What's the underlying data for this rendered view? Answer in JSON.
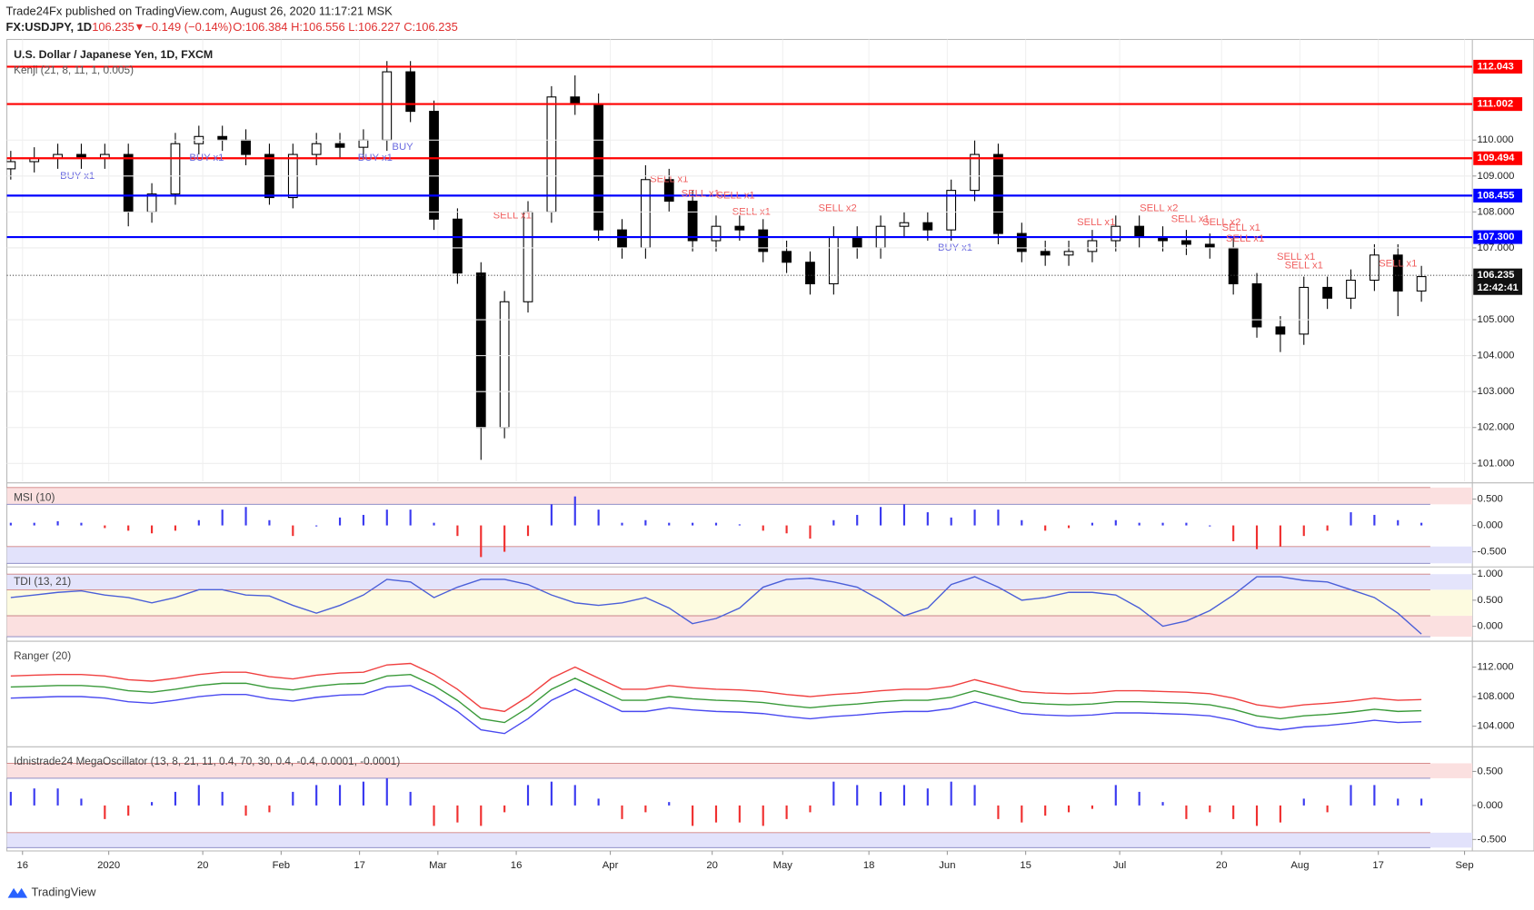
{
  "header": {
    "publisher": "Trade24Fx published on TradingView.com, August 26, 2020 11:17:21 MSK",
    "symbol": "FX:USDJPY, 1D",
    "last": "106.235",
    "arrow": "▼",
    "change": "−0.149 (−0.14%)",
    "ohlc": "O:106.384 H:106.556 L:106.227 C:106.235",
    "footer": "TradingView"
  },
  "chart_data": [
    {
      "type": "candlestick",
      "title": "U.S. Dollar / Japanese Yen, 1D, FXCM",
      "indicator": "Kenji (21, 8, 11, 1, 0.005)",
      "x": [
        0,
        3,
        6,
        9,
        12,
        15,
        18,
        21,
        24,
        27,
        30,
        33,
        36,
        39,
        42,
        45,
        48,
        51,
        54,
        57,
        60,
        63,
        66,
        69,
        72,
        75,
        78,
        81,
        84,
        87,
        90,
        93,
        96,
        99,
        102,
        105,
        108,
        111,
        114,
        117,
        120,
        123,
        126,
        129,
        132,
        135,
        138,
        141,
        144,
        147,
        150,
        153,
        156,
        159,
        162,
        165,
        168,
        171,
        174,
        177,
        180
      ],
      "open": [
        109.2,
        109.4,
        109.5,
        109.6,
        109.5,
        109.6,
        108.0,
        108.5,
        109.9,
        110.1,
        110.0,
        109.6,
        108.4,
        109.6,
        109.9,
        109.8,
        110.0,
        111.9,
        110.8,
        107.8,
        106.3,
        102.0,
        105.5,
        108.0,
        111.2,
        111.0,
        107.5,
        107.0,
        108.9,
        108.3,
        107.2,
        107.6,
        107.5,
        106.9,
        106.6,
        106.0,
        107.3,
        107.0,
        107.6,
        107.7,
        107.5,
        108.6,
        109.6,
        107.4,
        106.9,
        106.8,
        106.9,
        107.2,
        107.6,
        107.3,
        107.2,
        107.1,
        107.0,
        106.0,
        104.8,
        104.6,
        105.9,
        105.6,
        106.1,
        106.8,
        105.8
      ],
      "high": [
        109.7,
        109.8,
        109.9,
        109.9,
        109.9,
        109.9,
        108.8,
        110.2,
        110.4,
        110.4,
        110.3,
        109.9,
        109.9,
        110.2,
        110.2,
        110.3,
        112.2,
        112.2,
        111.1,
        108.1,
        106.6,
        105.8,
        108.3,
        111.5,
        111.8,
        111.3,
        107.8,
        109.3,
        109.2,
        108.6,
        107.9,
        107.9,
        107.8,
        107.2,
        106.9,
        107.6,
        107.6,
        107.9,
        108.0,
        108.0,
        108.9,
        110.0,
        109.9,
        107.7,
        107.2,
        107.2,
        107.5,
        107.9,
        107.9,
        107.6,
        107.5,
        107.4,
        107.3,
        106.3,
        105.1,
        106.2,
        106.2,
        106.4,
        107.1,
        107.1,
        106.5
      ],
      "low": [
        108.9,
        109.1,
        109.2,
        109.2,
        109.2,
        107.6,
        107.7,
        108.2,
        109.6,
        109.7,
        109.3,
        108.2,
        108.1,
        109.3,
        109.5,
        109.5,
        109.7,
        110.5,
        107.5,
        106.0,
        101.1,
        101.7,
        105.2,
        107.7,
        110.7,
        107.2,
        106.7,
        106.7,
        108.0,
        106.9,
        106.9,
        107.2,
        106.6,
        106.3,
        105.7,
        105.7,
        106.7,
        106.7,
        107.3,
        107.2,
        107.2,
        108.3,
        107.1,
        106.6,
        106.5,
        106.5,
        106.6,
        106.9,
        107.0,
        106.9,
        106.8,
        106.7,
        105.7,
        104.5,
        104.1,
        104.3,
        105.3,
        105.3,
        105.8,
        105.1,
        105.5
      ],
      "close": [
        109.4,
        109.5,
        109.6,
        109.5,
        109.6,
        108.0,
        108.5,
        109.9,
        110.1,
        110.0,
        109.6,
        108.4,
        109.6,
        109.9,
        109.8,
        110.0,
        111.9,
        110.8,
        107.8,
        106.3,
        102.0,
        105.5,
        108.0,
        111.2,
        111.0,
        107.5,
        107.0,
        108.9,
        108.3,
        107.2,
        107.6,
        107.5,
        106.9,
        106.6,
        106.0,
        107.3,
        107.0,
        107.6,
        107.7,
        107.5,
        108.6,
        109.6,
        107.4,
        106.9,
        106.8,
        106.9,
        107.2,
        107.6,
        107.3,
        107.2,
        107.1,
        107.0,
        106.0,
        104.8,
        104.6,
        105.9,
        105.6,
        106.1,
        106.8,
        105.8,
        106.2
      ],
      "up_color": "#ffffff",
      "down_color": "#000000",
      "xlim": [
        -0.5,
        186.5
      ],
      "xticks": [
        {
          "value": 1.5,
          "label": "16"
        },
        {
          "value": 12.5,
          "label": "2020"
        },
        {
          "value": 24.5,
          "label": "20"
        },
        {
          "value": 34.5,
          "label": "Feb"
        },
        {
          "value": 44.5,
          "label": "17"
        },
        {
          "value": 54.5,
          "label": "Mar"
        },
        {
          "value": 64.5,
          "label": "16"
        },
        {
          "value": 76.5,
          "label": "Apr"
        },
        {
          "value": 89.5,
          "label": "20"
        },
        {
          "value": 98.5,
          "label": "May"
        },
        {
          "value": 109.5,
          "label": "18"
        },
        {
          "value": 119.5,
          "label": "Jun"
        },
        {
          "value": 129.5,
          "label": "15"
        },
        {
          "value": 141.5,
          "label": "Jul"
        },
        {
          "value": 154.5,
          "label": "20"
        },
        {
          "value": 164.5,
          "label": "Aug"
        },
        {
          "value": 174.5,
          "label": "17"
        },
        {
          "value": 185.5,
          "label": "Sep"
        }
      ],
      "ylim": [
        100.5,
        112.8
      ],
      "yticks": [
        {
          "value": 110,
          "label": "110.000"
        },
        {
          "value": 109,
          "label": "109.000"
        },
        {
          "value": 108,
          "label": "108.000"
        },
        {
          "value": 107,
          "label": "107.000"
        },
        {
          "value": 105,
          "label": "105.000"
        },
        {
          "value": 104,
          "label": "104.000"
        },
        {
          "value": 103,
          "label": "103.000"
        },
        {
          "value": 102,
          "label": "102.000"
        },
        {
          "value": 101,
          "label": "101.000"
        }
      ],
      "grid": true,
      "levels": [
        {
          "value": 112.043,
          "color": "#ff0000"
        },
        {
          "value": 111.002,
          "color": "#ff0000"
        },
        {
          "value": 109.494,
          "color": "#ff0000"
        },
        {
          "value": 108.455,
          "color": "#0000ff"
        },
        {
          "value": 107.3,
          "label": "107.300",
          "color": "#0000ff"
        }
      ],
      "last": 106.235,
      "countdown": "12:42:41",
      "annotations": [
        {
          "text": "BUY x1",
          "x": 8.5,
          "y": 109.0,
          "color": "#6a6ae0"
        },
        {
          "text": "BUY x1",
          "x": 25,
          "y": 109.5,
          "color": "#6a6ae0"
        },
        {
          "text": "BUY x1",
          "x": 46.5,
          "y": 109.5,
          "color": "#6a6ae0"
        },
        {
          "text": "BUY",
          "x": 50,
          "y": 109.8,
          "color": "#6a6ae0"
        },
        {
          "text": "SELL x1",
          "x": 64,
          "y": 107.9,
          "color": "#f06060"
        },
        {
          "text": "SELL x1",
          "x": 84,
          "y": 108.9,
          "color": "#f06060"
        },
        {
          "text": "SELL x1",
          "x": 88,
          "y": 108.5,
          "color": "#f06060"
        },
        {
          "text": "SELL x1",
          "x": 92.5,
          "y": 108.45,
          "color": "#f06060"
        },
        {
          "text": "SELL x1",
          "x": 94.5,
          "y": 108.0,
          "color": "#f06060"
        },
        {
          "text": "SELL x2",
          "x": 105.5,
          "y": 108.1,
          "color": "#f06060"
        },
        {
          "text": "BUY x1",
          "x": 120.5,
          "y": 107.0,
          "color": "#6a6ae0"
        },
        {
          "text": "SELL x1",
          "x": 138.5,
          "y": 107.7,
          "color": "#f06060"
        },
        {
          "text": "SELL x2",
          "x": 146.5,
          "y": 108.1,
          "color": "#f06060"
        },
        {
          "text": "SELL x1",
          "x": 150.5,
          "y": 107.8,
          "color": "#f06060"
        },
        {
          "text": "SELL x2",
          "x": 154.5,
          "y": 107.7,
          "color": "#f06060"
        },
        {
          "text": "SELL x1",
          "x": 157,
          "y": 107.55,
          "color": "#f06060"
        },
        {
          "text": "SELL x1",
          "x": 157.5,
          "y": 107.25,
          "color": "#f06060"
        },
        {
          "text": "SELL x1",
          "x": 164,
          "y": 106.75,
          "color": "#f06060"
        },
        {
          "text": "SELL x1",
          "x": 165,
          "y": 106.5,
          "color": "#f06060"
        },
        {
          "text": "SELL x1",
          "x": 177,
          "y": 106.55,
          "color": "#f06060"
        }
      ]
    },
    {
      "type": "bar",
      "title": "MSI (10)",
      "values": [
        0.05,
        0.05,
        0.08,
        0.05,
        -0.05,
        -0.1,
        -0.15,
        -0.1,
        0.1,
        0.3,
        0.35,
        0.1,
        -0.2,
        0.0,
        0.15,
        0.2,
        0.3,
        0.3,
        0.05,
        -0.2,
        -0.6,
        -0.5,
        -0.2,
        0.4,
        0.55,
        0.3,
        0.05,
        0.1,
        0.05,
        0.05,
        0.05,
        0.02,
        -0.1,
        -0.15,
        -0.25,
        0.1,
        0.2,
        0.35,
        0.4,
        0.25,
        0.15,
        0.3,
        0.3,
        0.1,
        -0.1,
        -0.05,
        0.05,
        0.1,
        0.05,
        0.05,
        0.05,
        0.0,
        -0.3,
        -0.45,
        -0.4,
        -0.2,
        -0.1,
        0.25,
        0.2,
        0.1,
        0.05
      ],
      "positive_color": "#3a3af0",
      "negative_color": "#f03030",
      "ylim": [
        -0.76,
        0.78
      ],
      "yticks": [
        {
          "value": 0.5,
          "label": "0.500"
        },
        {
          "value": 0,
          "label": "0.000"
        },
        {
          "value": -0.5,
          "label": "-0.500"
        }
      ],
      "bands": [
        {
          "from": 0.4,
          "to": 0.72,
          "color": "#fbe0e0"
        },
        {
          "from": -0.72,
          "to": -0.4,
          "color": "#e2e2fb"
        }
      ]
    },
    {
      "type": "line",
      "title": "TDI (13, 21)",
      "values": [
        0.55,
        0.6,
        0.65,
        0.68,
        0.6,
        0.55,
        0.45,
        0.55,
        0.7,
        0.7,
        0.6,
        0.58,
        0.4,
        0.25,
        0.4,
        0.6,
        0.9,
        0.85,
        0.55,
        0.75,
        0.9,
        0.9,
        0.8,
        0.6,
        0.45,
        0.4,
        0.45,
        0.55,
        0.35,
        0.05,
        0.15,
        0.35,
        0.75,
        0.9,
        0.92,
        0.85,
        0.75,
        0.5,
        0.2,
        0.35,
        0.8,
        0.95,
        0.75,
        0.5,
        0.55,
        0.65,
        0.65,
        0.6,
        0.35,
        0.0,
        0.1,
        0.3,
        0.6,
        0.95,
        0.95,
        0.88,
        0.85,
        0.7,
        0.55,
        0.25,
        -0.15
      ],
      "color": "#4b5fd8",
      "ylim": [
        -0.26,
        1.11
      ],
      "yticks": [
        {
          "value": 1,
          "label": "1.000"
        },
        {
          "value": 0.5,
          "label": "0.500"
        },
        {
          "value": 0,
          "label": "0.000"
        }
      ],
      "bands": [
        {
          "from": 0.7,
          "to": 1.0,
          "color": "#e4e4fb"
        },
        {
          "from": 0.2,
          "to": 0.7,
          "color": "#fdfbe0"
        },
        {
          "from": -0.2,
          "to": 0.2,
          "color": "#fbe0e0"
        }
      ]
    },
    {
      "type": "line",
      "title": "Ranger (20)",
      "series": [
        {
          "name": "upper",
          "color": "#f04040",
          "values": [
            110.8,
            110.9,
            111.0,
            111.0,
            110.8,
            110.3,
            110.1,
            110.5,
            111.0,
            111.3,
            111.3,
            110.7,
            110.4,
            110.9,
            111.2,
            111.3,
            112.3,
            112.5,
            111.0,
            109.0,
            106.5,
            106.0,
            108.0,
            110.5,
            112.0,
            110.5,
            109.0,
            109.0,
            109.5,
            109.2,
            109.0,
            108.9,
            108.7,
            108.3,
            108.0,
            108.3,
            108.5,
            108.8,
            109.0,
            109.0,
            109.4,
            110.3,
            109.5,
            108.7,
            108.5,
            108.4,
            108.5,
            108.8,
            108.8,
            108.7,
            108.6,
            108.4,
            107.8,
            106.9,
            106.5,
            106.9,
            107.1,
            107.4,
            107.8,
            107.5,
            107.6
          ]
        },
        {
          "name": "middle",
          "color": "#3a9a3a",
          "values": [
            109.3,
            109.4,
            109.5,
            109.5,
            109.3,
            108.8,
            108.6,
            109.0,
            109.5,
            109.8,
            109.8,
            109.2,
            108.9,
            109.4,
            109.7,
            109.8,
            110.8,
            111.0,
            109.5,
            107.5,
            105.0,
            104.5,
            106.5,
            109.0,
            110.5,
            109.0,
            107.5,
            107.5,
            108.0,
            107.7,
            107.5,
            107.4,
            107.2,
            106.8,
            106.5,
            106.8,
            107.0,
            107.3,
            107.5,
            107.5,
            107.9,
            108.8,
            108.0,
            107.2,
            107.0,
            106.9,
            107.0,
            107.3,
            107.3,
            107.2,
            107.1,
            106.9,
            106.3,
            105.4,
            105.0,
            105.4,
            105.6,
            105.9,
            106.3,
            106.0,
            106.1
          ]
        },
        {
          "name": "lower",
          "color": "#4a4af0",
          "values": [
            107.8,
            107.9,
            108.0,
            108.0,
            107.8,
            107.3,
            107.1,
            107.5,
            108.0,
            108.3,
            108.3,
            107.7,
            107.4,
            107.9,
            108.2,
            108.3,
            109.3,
            109.5,
            108.0,
            106.0,
            103.5,
            103.0,
            105.0,
            107.5,
            109.0,
            107.5,
            106.0,
            106.0,
            106.5,
            106.2,
            106.0,
            105.9,
            105.7,
            105.3,
            105.0,
            105.3,
            105.5,
            105.8,
            106.0,
            106.0,
            106.4,
            107.3,
            106.5,
            105.7,
            105.5,
            105.4,
            105.5,
            105.8,
            105.8,
            105.7,
            105.6,
            105.4,
            104.8,
            103.9,
            103.5,
            103.9,
            104.1,
            104.4,
            104.8,
            104.5,
            104.6
          ]
        }
      ],
      "ylim": [
        101.4,
        115.3
      ],
      "yticks": [
        {
          "value": 112,
          "label": "112.000"
        },
        {
          "value": 108,
          "label": "108.000"
        },
        {
          "value": 104,
          "label": "104.000"
        }
      ]
    },
    {
      "type": "bar",
      "title": "Idnistrade24 MegaOscillator (13, 8, 21, 11, 0.4, 70, 30, 0.4, -0.4, 0.0001, -0.0001)",
      "values": [
        0.2,
        0.25,
        0.25,
        0.1,
        -0.2,
        -0.15,
        0.05,
        0.2,
        0.3,
        0.2,
        -0.15,
        -0.1,
        0.2,
        0.3,
        0.3,
        0.35,
        0.4,
        0.2,
        -0.3,
        -0.25,
        -0.3,
        -0.1,
        0.3,
        0.35,
        0.3,
        0.1,
        -0.2,
        -0.1,
        0.05,
        -0.3,
        -0.25,
        -0.25,
        -0.3,
        -0.2,
        -0.1,
        0.35,
        0.3,
        0.2,
        0.3,
        0.25,
        0.35,
        0.3,
        -0.2,
        -0.25,
        -0.15,
        -0.1,
        -0.05,
        0.3,
        0.2,
        0.05,
        -0.2,
        -0.1,
        -0.2,
        -0.3,
        -0.25,
        0.1,
        -0.1,
        0.3,
        0.3,
        0.1,
        0.1
      ],
      "positive_color": "#3a3af0",
      "negative_color": "#f03030",
      "ylim": [
        -0.64,
        0.84
      ],
      "yticks": [
        {
          "value": 0.5,
          "label": "0.500"
        },
        {
          "value": 0,
          "label": "0.000"
        },
        {
          "value": -0.5,
          "label": "-0.500"
        }
      ],
      "bands": [
        {
          "from": 0.4,
          "to": 0.62,
          "color": "#fbe0e0"
        },
        {
          "from": -0.62,
          "to": -0.4,
          "color": "#e2e2fb"
        }
      ]
    }
  ]
}
